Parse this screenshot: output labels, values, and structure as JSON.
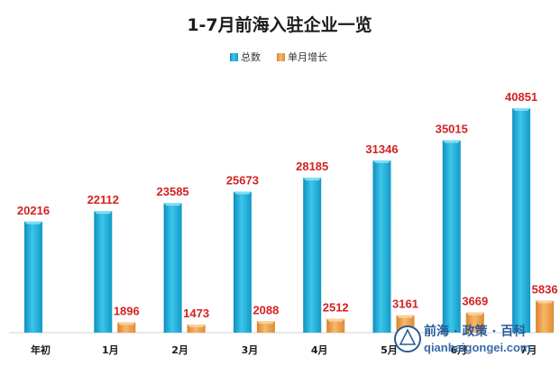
{
  "chart_data": {
    "type": "bar",
    "title": "1-7月前海入驻企业一览",
    "categories": [
      "年初",
      "1月",
      "2月",
      "3月",
      "4月",
      "5月",
      "6月",
      "7月"
    ],
    "series": [
      {
        "name": "总数",
        "color": "#1fb3dc",
        "values": [
          20216,
          22112,
          23585,
          25673,
          28185,
          31346,
          35015,
          40851
        ]
      },
      {
        "name": "单月增长",
        "color": "#f2a24a",
        "values": [
          null,
          1896,
          1473,
          2088,
          2512,
          3161,
          3669,
          5836
        ]
      }
    ],
    "ylim": [
      0,
      42000
    ],
    "legend_position": "top-center",
    "grid": false,
    "data_label_color": "#d42222"
  },
  "watermark": {
    "text_cn": "前海 · 政策 · 百科",
    "text_en": "qianhaigongei.com"
  }
}
